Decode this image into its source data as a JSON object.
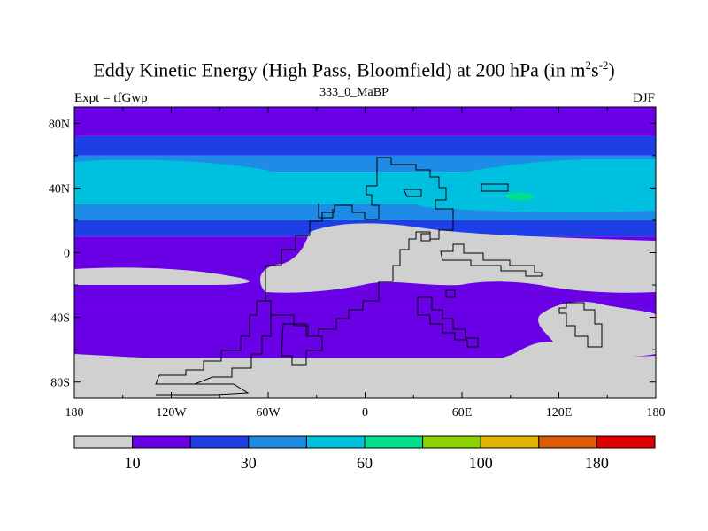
{
  "header": {
    "title_main": "Eddy Kinetic Energy (High Pass, Bloomfield) at 200 hPa (in m",
    "title_sup1": "2",
    "title_mid": "s",
    "title_sup2": "-2",
    "title_end": ")",
    "subtitle": "333_0_MaBP",
    "left_label": "Expt = tfGwp",
    "right_label": "DJF"
  },
  "chart_data": {
    "type": "heatmap",
    "title": "Eddy Kinetic Energy (High Pass, Bloomfield) at 200 hPa (in m2s-2)",
    "subtitle": "333_0_MaBP",
    "xlim": [
      -180,
      180
    ],
    "ylim": [
      -90,
      90
    ],
    "x_ticks": [
      -180,
      -120,
      -60,
      0,
      60,
      120,
      180
    ],
    "x_tick_labels": [
      "180",
      "120W",
      "60W",
      "0",
      "60E",
      "120E",
      "180"
    ],
    "y_ticks": [
      80,
      40,
      0,
      -40,
      -80
    ],
    "y_tick_labels": [
      "80N",
      "40N",
      "0",
      "40S",
      "80S"
    ],
    "levels": [
      10,
      20,
      30,
      40,
      60,
      80,
      100,
      140,
      180
    ],
    "level_labels": [
      "10",
      "30",
      "60",
      "100",
      "180"
    ],
    "colors": [
      "#d0d0d0",
      "#6a00e6",
      "#1e3ee6",
      "#1e8ce6",
      "#00c0e0",
      "#00e08c",
      "#8cd200",
      "#e0b400",
      "#e05a00",
      "#e00000"
    ],
    "bands": [
      {
        "lat_from": 90,
        "lat_to": 72,
        "color_index": 1
      },
      {
        "lat_from": 72,
        "lat_to": 60,
        "color_index": 2
      },
      {
        "lat_from": 60,
        "lat_to": 50,
        "color_index": 3
      },
      {
        "lat_from": 50,
        "lat_to": 30,
        "color_index": 4
      },
      {
        "lat_from": 30,
        "lat_to": 20,
        "color_index": 3
      },
      {
        "lat_from": 20,
        "lat_to": 10,
        "color_index": 2
      },
      {
        "lat_from": 10,
        "lat_to": -35,
        "color_index": 1
      },
      {
        "lat_from": -35,
        "lat_to": -65,
        "color_index": 1
      },
      {
        "lat_from": -65,
        "lat_to": -90,
        "color_index": 0
      }
    ]
  }
}
